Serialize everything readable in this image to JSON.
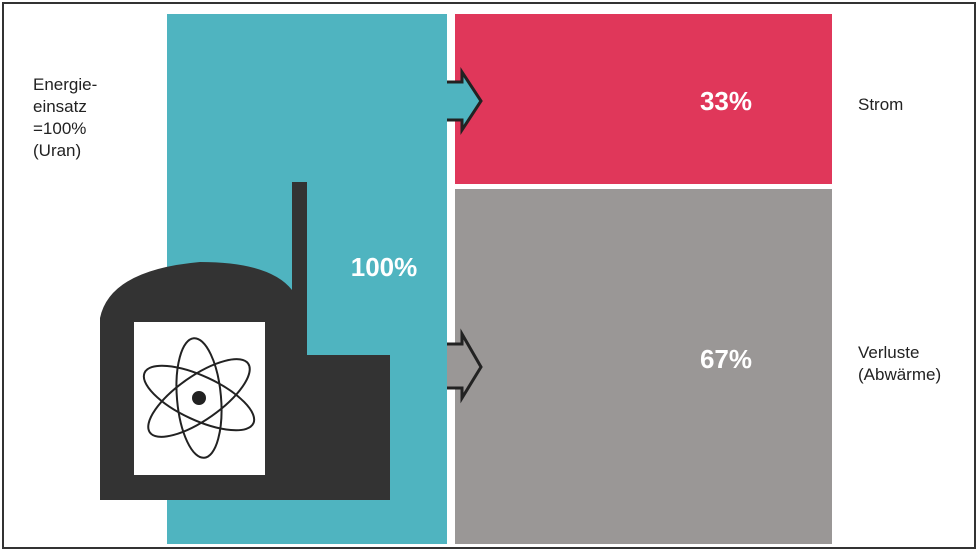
{
  "input": {
    "lines": [
      "Energie-",
      "einsatz",
      "=100%",
      "(Uran)"
    ]
  },
  "plant": {
    "label": "100%"
  },
  "outputs": [
    {
      "value_label": "33%",
      "lines": [
        "Strom"
      ]
    },
    {
      "value_label": "67%",
      "lines": [
        "Verluste",
        "(Abwärme)"
      ]
    }
  ]
}
